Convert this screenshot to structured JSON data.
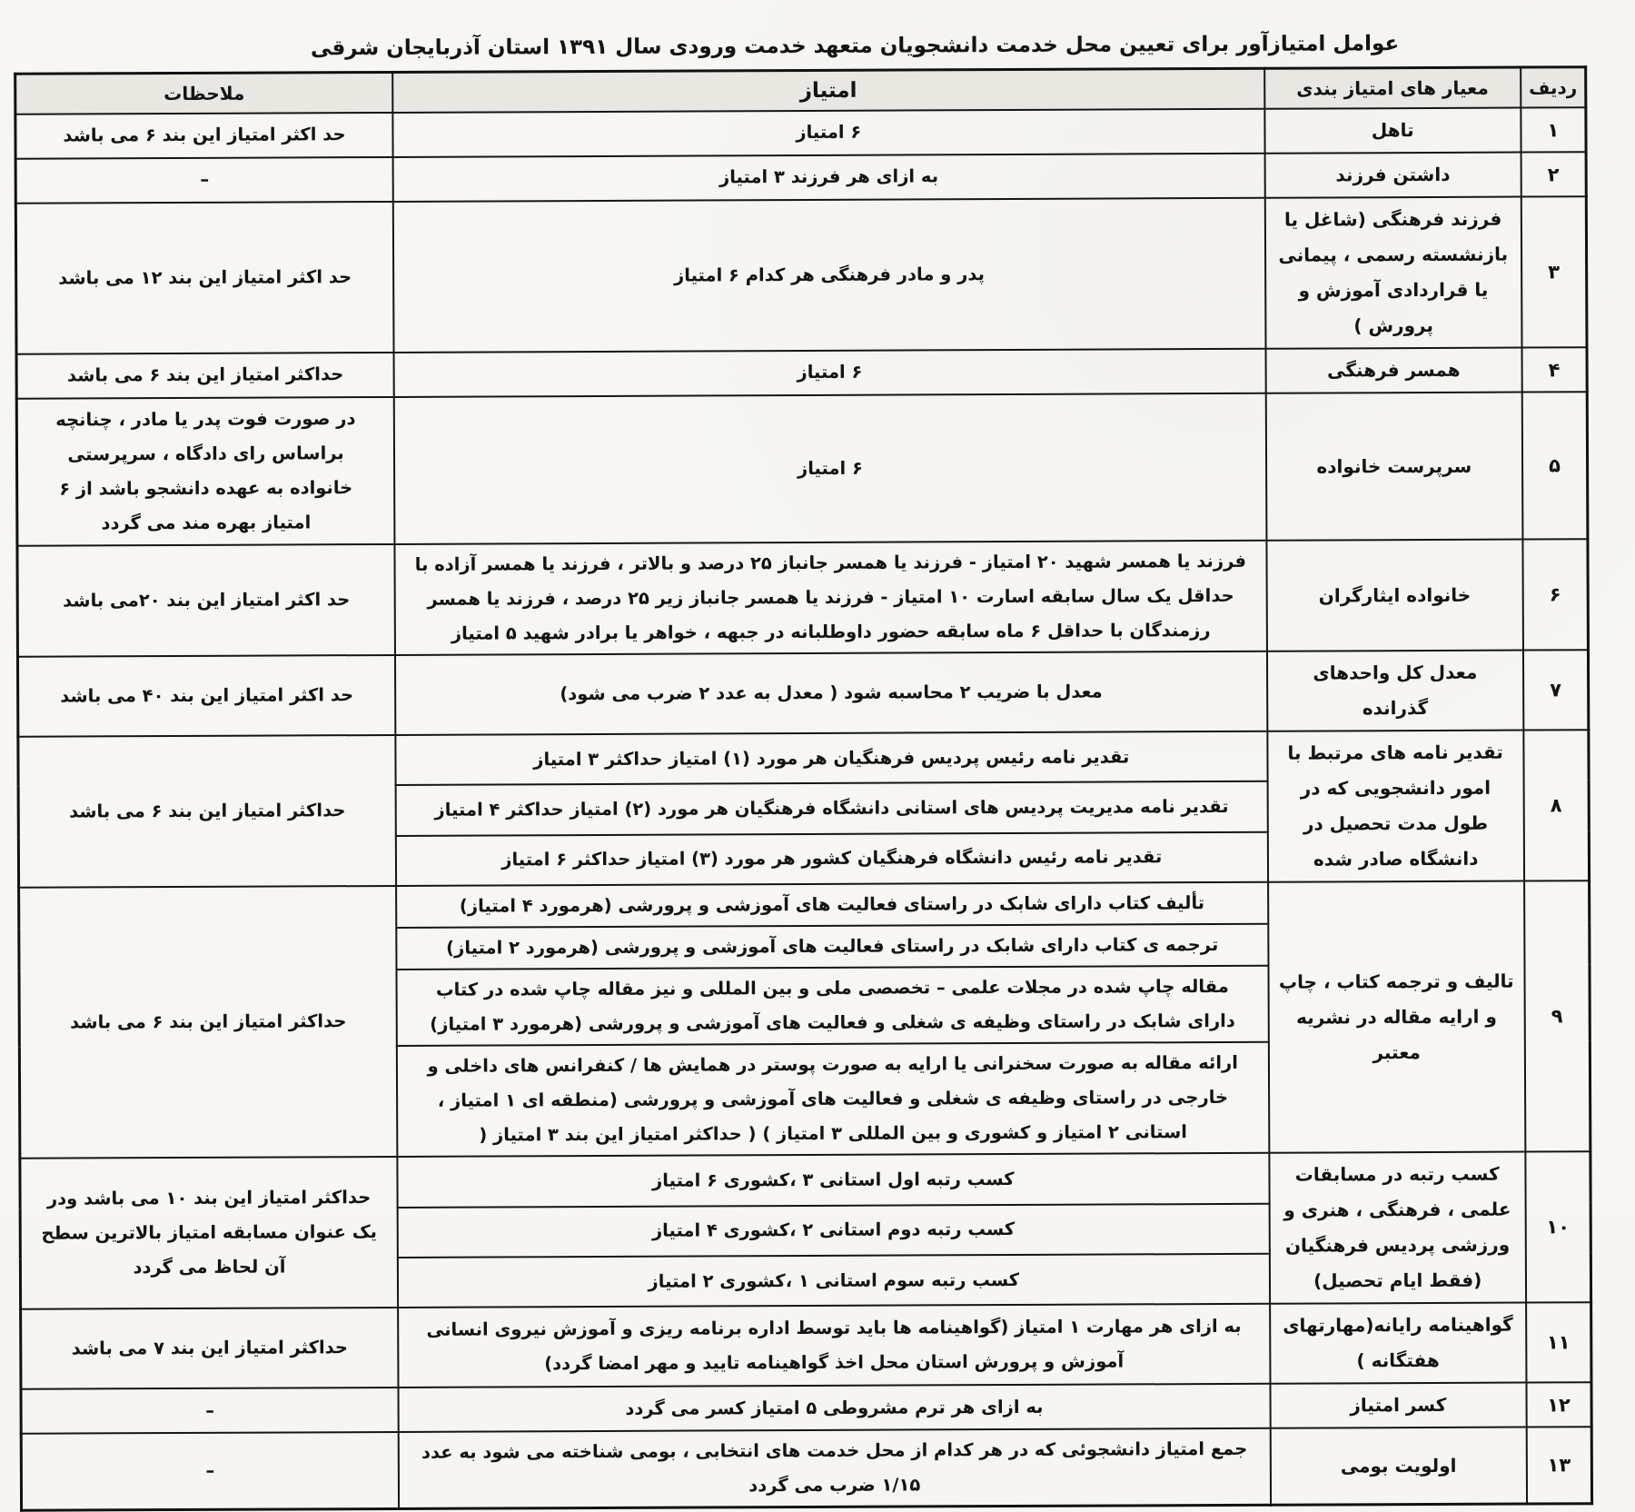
{
  "title": "عوامل امتیازآور برای تعیین محل خدمت دانشجویان متعهد خدمت ورودی سال ۱۳۹۱ استان آذربایجان شرقی",
  "table": {
    "headers": [
      "ردیف",
      "معیار های امتیاز بندی",
      "امتیاز",
      "ملاحظات"
    ],
    "rows": [
      {
        "num": "۱",
        "criteria": "تاهل",
        "points": [
          "۶ امتیاز"
        ],
        "notes": "حد اکثر امتیاز این بند ۶ می باشد"
      },
      {
        "num": "۲",
        "criteria": "داشتن فرزند",
        "points": [
          "به ازای هر فرزند ۳ امتیاز"
        ],
        "notes": "–"
      },
      {
        "num": "۳",
        "criteria": "فرزند فرهنگی (شاغل یا بازنشسته رسمی ، پیمانی یا قراردادی آموزش و پرورش )",
        "points": [
          "پدر و مادر فرهنگی هر کدام ۶ امتیاز"
        ],
        "notes": "حد اکثر امتیاز این بند ۱۲ می باشد"
      },
      {
        "num": "۴",
        "criteria": "همسر فرهنگی",
        "points": [
          "۶ امتیاز"
        ],
        "notes": "حداکثر امتیاز این بند ۶ می باشد"
      },
      {
        "num": "۵",
        "criteria": "سرپرست خانواده",
        "points": [
          "۶ امتیاز"
        ],
        "notes": "در صورت فوت پدر یا مادر ، چنانچه براساس رای دادگاه ، سرپرستی خانواده به عهده دانشجو باشد از ۶ امتیاز بهره مند می گردد"
      },
      {
        "num": "۶",
        "criteria": "خانواده ایثارگران",
        "points": [
          "فرزند یا همسر شهید ۲۰ امتیاز - فرزند یا همسر جانباز ۲۵ درصد و بالاتر ، فرزند یا همسر آزاده با حداقل یک سال سابقه اسارت ۱۰ امتیاز - فرزند یا همسر جانباز زیر ۲۵ درصد ، فرزند یا همسر رزمندگان با حداقل ۶ ماه سابقه حضور داوطلبانه در جبهه ، خواهر یا برادر شهید ۵ امتیاز"
        ],
        "notes": "حد اکثر امتیاز این بند ۲۰می باشد"
      },
      {
        "num": "۷",
        "criteria": "معدل کل واحدهای گذرانده",
        "points": [
          "معدل با ضریب ۲ محاسبه شود ( معدل به عدد ۲ ضرب می شود)"
        ],
        "notes": "حد اکثر امتیاز این بند ۴۰ می باشد"
      },
      {
        "num": "۸",
        "criteria": "تقدیر نامه های مرتبط با امور دانشجویی که در طول مدت تحصیل در دانشگاه صادر شده",
        "points": [
          "تقدیر نامه رئیس پردیس فرهنگیان هر مورد (۱) امتیاز حداکثر ۳ امتیاز",
          "تقدیر نامه مدیریت پردیس های استانی دانشگاه فرهنگیان هر مورد (۲) امتیاز حداکثر ۴ امتیاز",
          "تقدیر نامه رئیس دانشگاه فرهنگیان کشور هر مورد (۳) امتیاز حداکثر ۶ امتیاز"
        ],
        "notes": "حداکثر امتیاز این بند ۶ می باشد"
      },
      {
        "num": "۹",
        "criteria": "تالیف و ترجمه کتاب ، چاپ و ارایه مقاله در نشریه معتبر",
        "points": [
          "تألیف کتاب دارای شابک در راستای فعالیت های آموزشی و پرورشی (هرمورد ۴ امتیاز)",
          "ترجمه ی کتاب دارای شابک در راستای فعالیت های آموزشی و پرورشی (هرمورد ۲ امتیاز)",
          "مقاله چاپ شده در مجلات علمی – تخصصی ملی و بین المللی و نیز مقاله چاپ شده در کتاب دارای شابک در راستای وظیفه ی شغلی و فعالیت های آموزشی و پرورشی (هرمورد ۳ امتیاز)",
          "ارائه مقاله به صورت سخنرانی یا ارایه به صورت پوستر در همایش ها / کنفرانس های داخلی و خارجی در راستای وظیفه ی شغلی و فعالیت های آموزشی و پرورشی (منطقه ای ۱ امتیاز ، استانی ۲ امتیاز و کشوری و بین المللی ۳ امتیاز ) ( حداکثر امتیاز این بند ۳ امتیاز ("
        ],
        "notes": "حداکثر امتیاز این بند ۶ می باشد"
      },
      {
        "num": "۱۰",
        "criteria": "کسب رتبه در مسابقات علمی ، فرهنگی ، هنری و ورزشی پردیس فرهنگیان (فقط ایام تحصیل)",
        "points": [
          "کسب رتبه اول استانی ۳ ،کشوری ۶ امتیاز",
          "کسب رتبه دوم استانی ۲ ،کشوری ۴ امتیاز",
          "کسب رتبه سوم استانی ۱ ،کشوری ۲ امتیاز"
        ],
        "notes": "حداکثر امتیاز این بند ۱۰ می باشد ودر یک عنوان مسابقه امتیاز بالاترین سطح آن لحاظ می گردد"
      },
      {
        "num": "۱۱",
        "criteria": "گواهینامه رایانه(مهارتهای هفتگانه )",
        "points": [
          "به ازای هر مهارت ۱ امتیاز (گواهینامه ها باید توسط اداره برنامه ریزی و آموزش نیروی انسانی آموزش و پرورش استان محل اخذ گواهینامه تایید و مهر امضا گردد)"
        ],
        "notes": "حداکثر امتیاز این بند ۷ می باشد"
      },
      {
        "num": "۱۲",
        "criteria": "کسر امتیاز",
        "points": [
          "به ازای هر ترم مشروطی ۵ امتیاز کسر می گردد"
        ],
        "notes": "–"
      },
      {
        "num": "۱۳",
        "criteria": "اولویت بومی",
        "points": [
          "جمع امتیاز دانشجوئی که در هر کدام از محل خدمت های انتخابی ، بومی شناخته می شود به عدد ۱/۱۵ ضرب می گردد"
        ],
        "notes": "–"
      }
    ]
  }
}
